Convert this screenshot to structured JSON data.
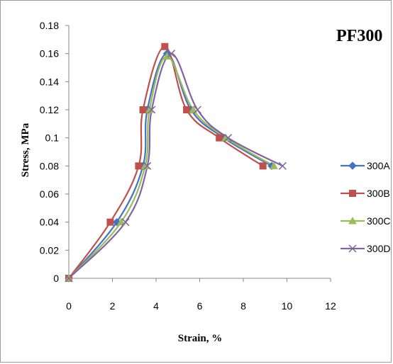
{
  "chart_data": {
    "type": "line",
    "title": "PF300",
    "xlabel": "Strain, %",
    "ylabel": "Stress, MPa",
    "xlim": [
      0,
      12
    ],
    "ylim": [
      0,
      0.18
    ],
    "xticks": [
      0,
      2,
      4,
      6,
      8,
      10,
      12
    ],
    "yticks": [
      0,
      0.02,
      0.04,
      0.06,
      0.08,
      0.1,
      0.12,
      0.14,
      0.16,
      0.18
    ],
    "ytick_labels": [
      "0",
      "0.02",
      "0.04",
      "0.06",
      "0.08",
      "0.1",
      "0.12",
      "0.14",
      "0.16",
      "0.18"
    ],
    "grid": false,
    "legend_position": "right",
    "series": [
      {
        "name": "300A",
        "color": "#4472C4",
        "marker": "diamond",
        "points": [
          [
            0,
            0
          ],
          [
            2.2,
            0.04
          ],
          [
            3.4,
            0.08
          ],
          [
            3.6,
            0.12
          ],
          [
            4.5,
            0.16
          ],
          [
            5.6,
            0.12
          ],
          [
            7.1,
            0.1
          ],
          [
            9.3,
            0.08
          ]
        ]
      },
      {
        "name": "300B",
        "color": "#C0504D",
        "marker": "square",
        "points": [
          [
            0,
            0
          ],
          [
            1.9,
            0.04
          ],
          [
            3.2,
            0.08
          ],
          [
            3.4,
            0.12
          ],
          [
            4.4,
            0.165
          ],
          [
            5.4,
            0.12
          ],
          [
            6.9,
            0.1
          ],
          [
            8.9,
            0.08
          ]
        ]
      },
      {
        "name": "300C",
        "color": "#9BBB59",
        "marker": "triangle",
        "points": [
          [
            0,
            0
          ],
          [
            2.4,
            0.04
          ],
          [
            3.5,
            0.08
          ],
          [
            3.7,
            0.12
          ],
          [
            4.5,
            0.158
          ],
          [
            5.7,
            0.12
          ],
          [
            7.2,
            0.1
          ],
          [
            9.4,
            0.08
          ]
        ]
      },
      {
        "name": "300D",
        "color": "#8064A2",
        "marker": "x",
        "points": [
          [
            0,
            0
          ],
          [
            2.6,
            0.04
          ],
          [
            3.6,
            0.08
          ],
          [
            3.8,
            0.12
          ],
          [
            4.7,
            0.16
          ],
          [
            5.9,
            0.12
          ],
          [
            7.3,
            0.1
          ],
          [
            9.8,
            0.08
          ]
        ]
      }
    ]
  }
}
